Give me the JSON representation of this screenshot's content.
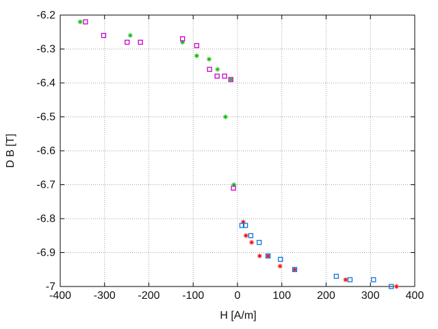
{
  "chart_data": {
    "type": "scatter",
    "title": "",
    "xlabel": "H [A/m]",
    "ylabel": "D B [T]",
    "xlim": [
      -400,
      400
    ],
    "ylim": [
      -7,
      -6.2
    ],
    "x_ticks": [
      -400,
      -300,
      -200,
      -100,
      0,
      100,
      200,
      300,
      400
    ],
    "y_ticks": [
      -7,
      -6.9,
      -6.8,
      -6.7,
      -6.6,
      -6.5,
      -6.4,
      -6.3,
      -6.2
    ],
    "grid": true,
    "legend_position": "none",
    "series": [
      {
        "name": "green-asterisks",
        "marker": "asterisk",
        "color": "#00b800",
        "points": [
          [
            -355,
            -6.22
          ],
          [
            -242,
            -6.26
          ],
          [
            -124,
            -6.28
          ],
          [
            -92,
            -6.32
          ],
          [
            -64,
            -6.33
          ],
          [
            -45,
            -6.36
          ],
          [
            -27,
            -6.5
          ],
          [
            -15,
            -6.39
          ],
          [
            -8,
            -6.7
          ]
        ]
      },
      {
        "name": "magenta-squares",
        "marker": "square",
        "color": "#c400c4",
        "points": [
          [
            -343,
            -6.22
          ],
          [
            -302,
            -6.26
          ],
          [
            -249,
            -6.28
          ],
          [
            -219,
            -6.28
          ],
          [
            -124,
            -6.27
          ],
          [
            -92,
            -6.29
          ],
          [
            -63,
            -6.36
          ],
          [
            -46,
            -6.38
          ],
          [
            -29,
            -6.38
          ],
          [
            -15,
            -6.39
          ],
          [
            -9,
            -6.71
          ]
        ]
      },
      {
        "name": "red-asterisks",
        "marker": "asterisk",
        "color": "#ee0000",
        "points": [
          [
            13,
            -6.81
          ],
          [
            19,
            -6.85
          ],
          [
            32,
            -6.87
          ],
          [
            50,
            -6.91
          ],
          [
            69,
            -6.91
          ],
          [
            96,
            -6.94
          ],
          [
            129,
            -6.95
          ],
          [
            244,
            -6.98
          ],
          [
            359,
            -7.0
          ]
        ]
      },
      {
        "name": "blue-squares",
        "marker": "square",
        "color": "#0a73d9",
        "points": [
          [
            10,
            -6.82
          ],
          [
            18,
            -6.82
          ],
          [
            30,
            -6.85
          ],
          [
            49,
            -6.87
          ],
          [
            69,
            -6.91
          ],
          [
            97,
            -6.92
          ],
          [
            129,
            -6.95
          ],
          [
            223,
            -6.97
          ],
          [
            254,
            -6.98
          ],
          [
            307,
            -6.98
          ],
          [
            347,
            -7.0
          ]
        ]
      }
    ]
  },
  "colors": {
    "background": "#ffffff",
    "axis_border": "#000000",
    "grid": "#9e9e9e",
    "tick_text": "#111111"
  }
}
